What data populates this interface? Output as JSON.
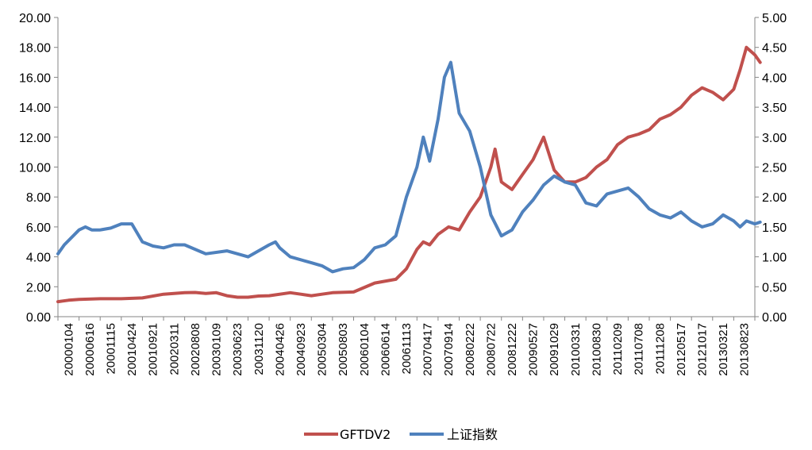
{
  "chart_data": {
    "type": "line",
    "title": "",
    "xlabel": "",
    "ylabel": "",
    "y_left": {
      "range": [
        0,
        20
      ],
      "ticks": [
        "0.00",
        "2.00",
        "4.00",
        "6.00",
        "8.00",
        "10.00",
        "12.00",
        "14.00",
        "16.00",
        "18.00",
        "20.00"
      ]
    },
    "y_right": {
      "range": [
        0,
        5
      ],
      "ticks": [
        "0.00",
        "0.50",
        "1.00",
        "1.50",
        "2.00",
        "2.50",
        "3.00",
        "3.50",
        "4.00",
        "4.50",
        "5.00"
      ]
    },
    "x_tick_labels": [
      "20000104",
      "20000616",
      "20001115",
      "20010424",
      "20010921",
      "20020311",
      "20020808",
      "20030109",
      "20030623",
      "20031120",
      "20040426",
      "20040923",
      "20050304",
      "20050803",
      "20060104",
      "20060614",
      "20061113",
      "20070417",
      "20070914",
      "20080222",
      "20080722",
      "20081222",
      "20090527",
      "20091029",
      "20100331",
      "20100830",
      "20110209",
      "20110708",
      "20111208",
      "20120517",
      "20121017",
      "20130321",
      "20130823"
    ],
    "grid": false,
    "legend": "bottom-center",
    "series": [
      {
        "name": "GFTDV2",
        "axis": "left",
        "color": "#C0504D",
        "points": [
          [
            0,
            1.0
          ],
          [
            0.5,
            1.1
          ],
          [
            1,
            1.15
          ],
          [
            2,
            1.2
          ],
          [
            3,
            1.2
          ],
          [
            4,
            1.25
          ],
          [
            5,
            1.5
          ],
          [
            6,
            1.6
          ],
          [
            6.5,
            1.62
          ],
          [
            7,
            1.55
          ],
          [
            7.5,
            1.6
          ],
          [
            8,
            1.4
          ],
          [
            8.5,
            1.3
          ],
          [
            9,
            1.3
          ],
          [
            9.5,
            1.38
          ],
          [
            10,
            1.4
          ],
          [
            11,
            1.6
          ],
          [
            11.5,
            1.5
          ],
          [
            12,
            1.4
          ],
          [
            12.5,
            1.5
          ],
          [
            13,
            1.6
          ],
          [
            14,
            1.65
          ],
          [
            15,
            2.25
          ],
          [
            16,
            2.5
          ],
          [
            16.5,
            3.2
          ],
          [
            17,
            4.5
          ],
          [
            17.3,
            5.0
          ],
          [
            17.6,
            4.8
          ],
          [
            18,
            5.5
          ],
          [
            18.5,
            6.0
          ],
          [
            19,
            5.8
          ],
          [
            19.5,
            7.0
          ],
          [
            20,
            8.0
          ],
          [
            20.5,
            10.0
          ],
          [
            20.7,
            11.2
          ],
          [
            21,
            9.0
          ],
          [
            21.5,
            8.5
          ],
          [
            22,
            9.5
          ],
          [
            22.5,
            10.5
          ],
          [
            23,
            12.0
          ],
          [
            23.5,
            9.8
          ],
          [
            24,
            9.0
          ],
          [
            24.5,
            9.0
          ],
          [
            25,
            9.3
          ],
          [
            25.5,
            10.0
          ],
          [
            26,
            10.5
          ],
          [
            26.5,
            11.5
          ],
          [
            27,
            12.0
          ],
          [
            27.5,
            12.2
          ],
          [
            28,
            12.5
          ],
          [
            28.5,
            13.2
          ],
          [
            29,
            13.5
          ],
          [
            29.5,
            14.0
          ],
          [
            30,
            14.8
          ],
          [
            30.5,
            15.3
          ],
          [
            31,
            15.0
          ],
          [
            31.5,
            14.5
          ],
          [
            32,
            15.2
          ],
          [
            32.3,
            16.5
          ],
          [
            32.6,
            18.0
          ],
          [
            33,
            17.5
          ],
          [
            33.25,
            17.0
          ]
        ]
      },
      {
        "name": "上证指数",
        "axis": "right",
        "color": "#4F81BD",
        "points": [
          [
            0,
            1.05
          ],
          [
            0.3,
            1.2
          ],
          [
            1,
            1.45
          ],
          [
            1.3,
            1.5
          ],
          [
            1.6,
            1.45
          ],
          [
            2,
            1.45
          ],
          [
            2.5,
            1.48
          ],
          [
            3,
            1.55
          ],
          [
            3.5,
            1.55
          ],
          [
            4,
            1.25
          ],
          [
            4.5,
            1.18
          ],
          [
            5,
            1.15
          ],
          [
            5.5,
            1.2
          ],
          [
            6,
            1.2
          ],
          [
            7,
            1.05
          ],
          [
            8,
            1.1
          ],
          [
            8.5,
            1.05
          ],
          [
            9,
            1.0
          ],
          [
            10,
            1.2
          ],
          [
            10.3,
            1.25
          ],
          [
            10.5,
            1.15
          ],
          [
            11,
            1.0
          ],
          [
            12,
            0.9
          ],
          [
            12.5,
            0.85
          ],
          [
            13,
            0.75
          ],
          [
            13.5,
            0.8
          ],
          [
            14,
            0.82
          ],
          [
            14.5,
            0.95
          ],
          [
            15,
            1.15
          ],
          [
            15.5,
            1.2
          ],
          [
            16,
            1.35
          ],
          [
            16.5,
            2.0
          ],
          [
            17,
            2.5
          ],
          [
            17.3,
            3.0
          ],
          [
            17.6,
            2.6
          ],
          [
            18,
            3.3
          ],
          [
            18.3,
            4.0
          ],
          [
            18.6,
            4.25
          ],
          [
            19,
            3.4
          ],
          [
            19.5,
            3.1
          ],
          [
            20,
            2.5
          ],
          [
            20.5,
            1.7
          ],
          [
            21,
            1.35
          ],
          [
            21.5,
            1.45
          ],
          [
            22,
            1.75
          ],
          [
            22.5,
            1.95
          ],
          [
            23,
            2.2
          ],
          [
            23.5,
            2.35
          ],
          [
            24,
            2.25
          ],
          [
            24.5,
            2.2
          ],
          [
            25,
            1.9
          ],
          [
            25.5,
            1.85
          ],
          [
            26,
            2.05
          ],
          [
            26.5,
            2.1
          ],
          [
            27,
            2.15
          ],
          [
            27.5,
            2.0
          ],
          [
            28,
            1.8
          ],
          [
            28.5,
            1.7
          ],
          [
            29,
            1.65
          ],
          [
            29.5,
            1.75
          ],
          [
            30,
            1.6
          ],
          [
            30.5,
            1.5
          ],
          [
            31,
            1.55
          ],
          [
            31.5,
            1.7
          ],
          [
            32,
            1.6
          ],
          [
            32.3,
            1.5
          ],
          [
            32.6,
            1.6
          ],
          [
            33,
            1.55
          ],
          [
            33.25,
            1.58
          ]
        ]
      }
    ]
  }
}
